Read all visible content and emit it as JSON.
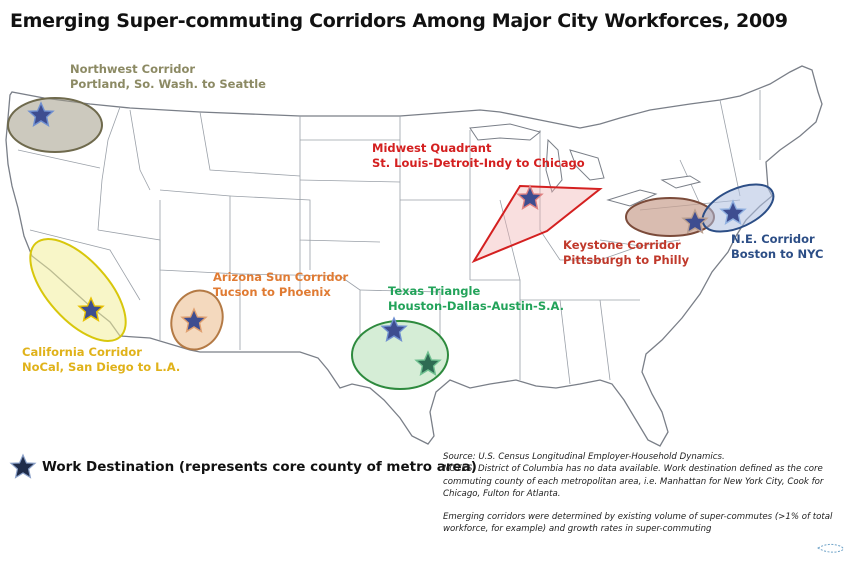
{
  "title": "Emerging Super-commuting Corridors Among Major City Workforces, 2009",
  "corridors": {
    "northwest": {
      "name": "Northwest Corridor",
      "route": "Portland, So. Wash. to Seattle",
      "color": "#8c8a64"
    },
    "midwest": {
      "name": "Midwest Quadrant",
      "route": "St. Louis-Detroit-Indy to Chicago",
      "color": "#d42020"
    },
    "keystone": {
      "name": "Keystone Corridor",
      "route": "Pittsburgh to Philly",
      "color": "#c0392b"
    },
    "northeast": {
      "name": "N.E. Corridor",
      "route": "Boston to NYC",
      "color": "#2c4e86"
    },
    "arizona": {
      "name": "Arizona Sun Corridor",
      "route": "Tucson to Phoenix",
      "color": "#e07b33"
    },
    "texas": {
      "name": "Texas Triangle",
      "route": "Houston-Dallas-Austin-S.A.",
      "color": "#23a35a"
    },
    "california": {
      "name": "California Corridor",
      "route": "NoCal, San Diego to L.A.",
      "color": "#e0b21a"
    }
  },
  "legend": {
    "icon": "star-icon",
    "label": "Work Destination (represents core county of metro area)"
  },
  "notes": {
    "source": "Source: U.S. Census Longitudinal Employer-Household Dynamics.",
    "note1": "NOTES: District of Columbia has no data available. Work destination defined as the core commuting county of each metropolitan area, i.e. Manhattan for New York City, Cook for Chicago, Fulton for Atlanta.",
    "note2": "Emerging corridors were determined by existing volume of super-commutes (>1% of total workforce, for example) and growth rates in super-commuting"
  }
}
